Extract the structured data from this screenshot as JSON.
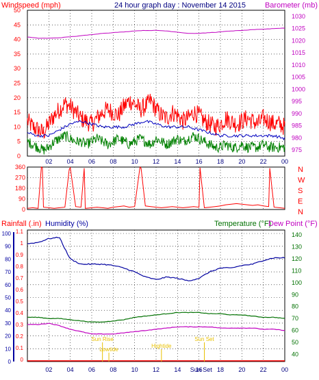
{
  "colors": {
    "background": "#ffffff",
    "frame": "#000000",
    "grid": "#000000",
    "windspeed": "#ff0000",
    "gust_avg": "#0000c0",
    "wind_avg": "#008000",
    "barometer": "#c000c0",
    "direction": "#ff0000",
    "rainfall": "#ff0000",
    "humidity": "#0000a0",
    "temperature": "#007000",
    "dew_point": "#c000c0",
    "event": "#e8c000"
  },
  "chart_data": [
    {
      "type": "line",
      "title": "24 hour graph day : November 14 2015",
      "ylabel": "Windspeed (mph)",
      "y2label": "Barometer (mb)",
      "x_ticks": [
        "02",
        "04",
        "06",
        "08",
        "10",
        "12",
        "14",
        "16",
        "18",
        "20",
        "22",
        "00"
      ],
      "ylim": [
        0,
        50
      ],
      "y_ticks": [
        "0",
        "5",
        "10",
        "15",
        "20",
        "25",
        "30",
        "35",
        "40",
        "45",
        "50"
      ],
      "y2lim": [
        972.5,
        1032.5
      ],
      "y2_ticks": [
        "975",
        "980",
        "985",
        "990",
        "995",
        "1000",
        "1005",
        "1010",
        "1015",
        "1020",
        "1025",
        "1030"
      ],
      "grid": true,
      "series": [
        {
          "name": "Windspeed (mph)",
          "axis": "left",
          "x": [
            0,
            0.5,
            1,
            1.5,
            2,
            2.5,
            3,
            3.5,
            4,
            4.5,
            5,
            5.5,
            6,
            6.5,
            7,
            7.5,
            8,
            8.5,
            9,
            9.5,
            10,
            10.5,
            11,
            11.5,
            12,
            12.5,
            13,
            13.5,
            14,
            14.5,
            15,
            15.5,
            16,
            16.5,
            17,
            17.5,
            18,
            18.5,
            19,
            19.5,
            20,
            20.5,
            21,
            21.5,
            22,
            22.5,
            23,
            23.5,
            24
          ],
          "y": [
            12,
            10,
            9,
            8,
            11,
            14,
            16,
            18,
            17,
            15,
            13,
            12,
            11,
            13,
            15,
            16,
            15,
            14,
            17,
            19,
            18,
            16,
            17,
            19,
            16,
            14,
            13,
            15,
            14,
            12,
            13,
            15,
            14,
            12,
            11,
            10,
            11,
            13,
            12,
            11,
            12,
            13,
            12,
            11,
            13,
            12,
            11,
            11,
            10
          ]
        },
        {
          "x": [
            0,
            1,
            2,
            3,
            4,
            5,
            6,
            7,
            8,
            9,
            10,
            11,
            12,
            13,
            14,
            15,
            16,
            17,
            18,
            19,
            20,
            21,
            22,
            23,
            24
          ],
          "axis": "left",
          "y": [
            8,
            7,
            7,
            9,
            11,
            12,
            11,
            10,
            10,
            10,
            11,
            12,
            11,
            10,
            10,
            10,
            9,
            8,
            7,
            7,
            7,
            7,
            7,
            7,
            6
          ]
        },
        {
          "x": [
            0,
            0.5,
            1,
            1.5,
            2,
            2.5,
            3,
            3.5,
            4,
            4.5,
            5,
            5.5,
            6,
            6.5,
            7,
            7.5,
            8,
            8.5,
            9,
            9.5,
            10,
            10.5,
            11,
            11.5,
            12,
            12.5,
            13,
            13.5,
            14,
            14.5,
            15,
            15.5,
            16,
            16.5,
            17,
            17.5,
            18,
            18.5,
            19,
            19.5,
            20,
            20.5,
            21,
            21.5,
            22,
            22.5,
            23,
            23.5,
            24
          ],
          "axis": "left",
          "y": [
            5,
            4,
            3,
            2,
            3,
            5,
            6,
            7,
            6,
            5,
            5,
            4,
            5,
            6,
            5,
            4,
            5,
            6,
            5,
            4,
            5,
            6,
            5,
            4,
            6,
            5,
            4,
            5,
            6,
            5,
            6,
            7,
            6,
            5,
            4,
            3,
            3,
            4,
            3,
            3,
            4,
            3,
            3,
            3,
            4,
            3,
            3,
            3,
            3
          ]
        },
        {
          "name": "Barometer (mb)",
          "axis": "right",
          "x": [
            0,
            1,
            2,
            3,
            4,
            5,
            6,
            7,
            8,
            9,
            10,
            11,
            12,
            13,
            14,
            15,
            16,
            17,
            18,
            19,
            20,
            21,
            22,
            23,
            24
          ],
          "y": [
            1021.5,
            1021,
            1021,
            1021.2,
            1021.6,
            1022,
            1022.5,
            1023,
            1023.3,
            1023.6,
            1024,
            1024.2,
            1024.2,
            1024,
            1023.5,
            1023,
            1023,
            1023.3,
            1023.6,
            1024,
            1024.2,
            1024.5,
            1024.7,
            1025,
            1025.2
          ]
        }
      ]
    },
    {
      "type": "scatter",
      "ylim": [
        0,
        360
      ],
      "y_ticks": [
        "0",
        "90",
        "180",
        "270",
        "360"
      ],
      "compass_labels": [
        "N",
        "W",
        "S",
        "E",
        "N"
      ],
      "x_ticks": [
        "02",
        "04",
        "06",
        "08",
        "10",
        "12",
        "14",
        "16",
        "18",
        "20",
        "22",
        "00"
      ],
      "series": [
        {
          "x": [
            0,
            0.5,
            1,
            1.3,
            1.4,
            1.5,
            2,
            2.5,
            3,
            3.5,
            3.9,
            4,
            4.5,
            5,
            5.3,
            5.4,
            6,
            6.5,
            7,
            7.5,
            8,
            8.5,
            9,
            9.5,
            10,
            10.5,
            10.6,
            11,
            11.5,
            12,
            12.5,
            13,
            13.5,
            14,
            14.5,
            15,
            15.5,
            16,
            16.1,
            16.5,
            17,
            17.5,
            18,
            18.5,
            19,
            19.5,
            20,
            20.5,
            21,
            21.5,
            22,
            22.5,
            22.6,
            23,
            23.5,
            24
          ],
          "y": [
            10,
            15,
            10,
            360,
            355,
            20,
            15,
            10,
            15,
            20,
            340,
            355,
            25,
            20,
            350,
            10,
            15,
            20,
            15,
            10,
            20,
            25,
            30,
            20,
            25,
            360,
            350,
            30,
            25,
            20,
            15,
            20,
            25,
            20,
            15,
            20,
            25,
            20,
            355,
            15,
            20,
            25,
            30,
            40,
            45,
            50,
            45,
            40,
            35,
            40,
            30,
            25,
            350,
            20,
            15,
            10
          ]
        }
      ]
    },
    {
      "type": "line",
      "y_left_label": "Rainfall (.in)",
      "y_left2_label": "Humidity (%)",
      "y_right_label": "Temperature (°F)",
      "y_right2_label": "Dew Point (°F)",
      "x_ticks": [
        "02",
        "04",
        "06",
        "08",
        "10",
        "12",
        "14",
        "16",
        "18",
        "20",
        "22",
        "00"
      ],
      "humidity_ticks": [
        "0",
        "10",
        "20",
        "30",
        "40",
        "50",
        "60",
        "70",
        "80",
        "90",
        "100"
      ],
      "rain_ticks": [
        "0",
        "0.1",
        "0.2",
        "0.3",
        "0.4",
        "0.5",
        "0.6",
        "0.7",
        "0.8",
        "0.9",
        "1",
        "1.1"
      ],
      "temp_ticks": [
        "40",
        "50",
        "60",
        "70",
        "80",
        "90",
        "100",
        "110",
        "120",
        "130",
        "140"
      ],
      "humidity_lim": [
        0,
        100
      ],
      "temp_lim": [
        34,
        144
      ],
      "grid": true,
      "series": [
        {
          "name": "Humidity (%)",
          "axis": "humidity",
          "x": [
            0,
            1,
            2,
            3,
            3.5,
            4,
            5,
            6,
            7,
            8,
            9,
            10,
            11,
            12,
            13,
            14,
            15,
            16,
            17,
            18,
            19,
            20,
            21,
            22,
            23,
            24
          ],
          "y": [
            92,
            93,
            96,
            97,
            88,
            80,
            76,
            76,
            76,
            75,
            73,
            70,
            66,
            64,
            66,
            65,
            63,
            65,
            70,
            73,
            73,
            75,
            76,
            79,
            81,
            81
          ]
        },
        {
          "name": "Temperature (°F)",
          "axis": "temp",
          "x": [
            0,
            1,
            2,
            3,
            4,
            5,
            6,
            7,
            8,
            9,
            10,
            11,
            12,
            13,
            14,
            15,
            16,
            17,
            18,
            19,
            20,
            21,
            22,
            23,
            24
          ],
          "y": [
            71,
            71,
            70,
            70,
            69,
            68,
            67,
            67,
            68,
            69,
            71,
            72,
            73,
            74,
            75,
            75,
            75,
            74,
            74,
            73,
            73,
            72,
            71,
            71,
            70
          ]
        },
        {
          "name": "Dew Point (°F)",
          "axis": "temp",
          "x": [
            0,
            1,
            2,
            3,
            4,
            5,
            6,
            7,
            8,
            9,
            10,
            11,
            12,
            13,
            14,
            15,
            16,
            17,
            18,
            19,
            20,
            21,
            22,
            23,
            24
          ],
          "y": [
            65,
            65,
            66,
            64,
            61,
            59,
            57,
            57,
            57,
            58,
            59,
            60,
            61,
            62,
            63,
            63,
            63,
            63,
            62,
            62,
            62,
            62,
            61,
            61,
            60
          ]
        },
        {
          "name": "Rainfall (.in)",
          "axis": "rain",
          "x": [
            0,
            24
          ],
          "y": [
            0,
            0
          ]
        }
      ],
      "annotations": [
        {
          "text": "Sun Rise",
          "x": 7.0
        },
        {
          "text": "Lowtide",
          "x": 7.6
        },
        {
          "text": "Hightide",
          "x": 12.5
        },
        {
          "text": "Sun Set",
          "x": 16.5
        }
      ],
      "bottom_overlay_label": "Sun Set"
    }
  ]
}
